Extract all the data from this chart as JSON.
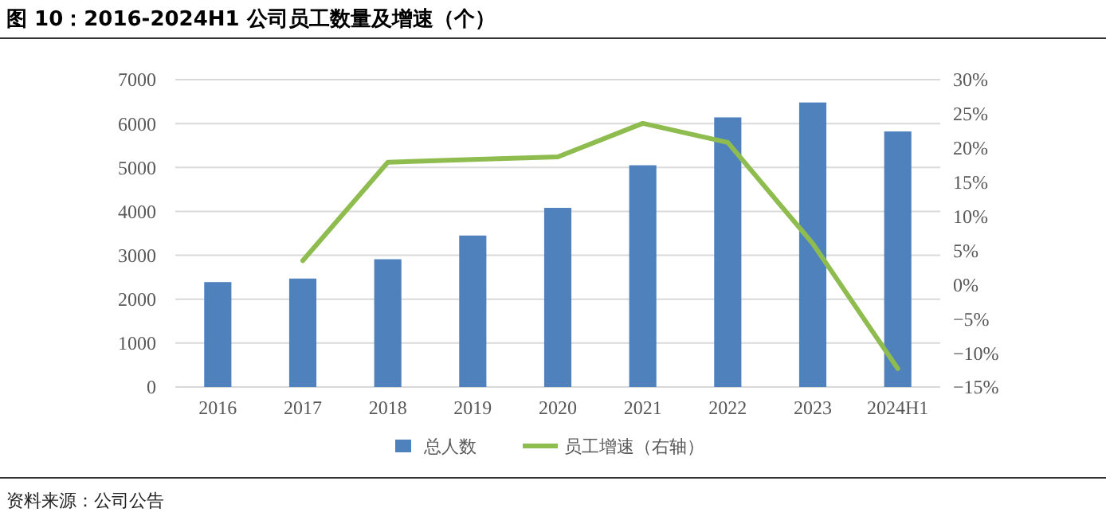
{
  "chart_data": {
    "type": "bar",
    "title": "图 10：2016-2024H1  公司员工数量及增速（个）",
    "categories": [
      "2016",
      "2017",
      "2018",
      "2019",
      "2020",
      "2021",
      "2022",
      "2023",
      "2024H1"
    ],
    "series": [
      {
        "name": "总人数",
        "color": "#4f81bd",
        "values": [
          2390,
          2470,
          2910,
          3450,
          4080,
          5050,
          6140,
          6480,
          5820
        ]
      },
      {
        "name": "员工增速（右轴）",
        "type": "line",
        "axis": "y2",
        "color": "#8fbc4f",
        "values": [
          null,
          3.5,
          17.9,
          18.3,
          18.7,
          23.6,
          20.8,
          6.0,
          -12.3
        ]
      }
    ],
    "ylim": [
      0,
      7000
    ],
    "yticks": [
      0,
      1000,
      2000,
      3000,
      4000,
      5000,
      6000,
      7000
    ],
    "y2lim": [
      -15,
      30
    ],
    "y2ticks": [
      {
        "value": -15,
        "label": "−15%"
      },
      {
        "value": -10,
        "label": "−10%"
      },
      {
        "value": -5,
        "label": "−5%"
      },
      {
        "value": 0,
        "label": "0%"
      },
      {
        "value": 5,
        "label": "5%"
      },
      {
        "value": 10,
        "label": "10%"
      },
      {
        "value": 15,
        "label": "15%"
      },
      {
        "value": 20,
        "label": "20%"
      },
      {
        "value": 25,
        "label": "25%"
      },
      {
        "value": 30,
        "label": "30%"
      }
    ],
    "grid": "y",
    "legend": "bottom",
    "marker": "none",
    "line_style": "solid",
    "annotations": [
      "资料来源：公司公告"
    ]
  }
}
